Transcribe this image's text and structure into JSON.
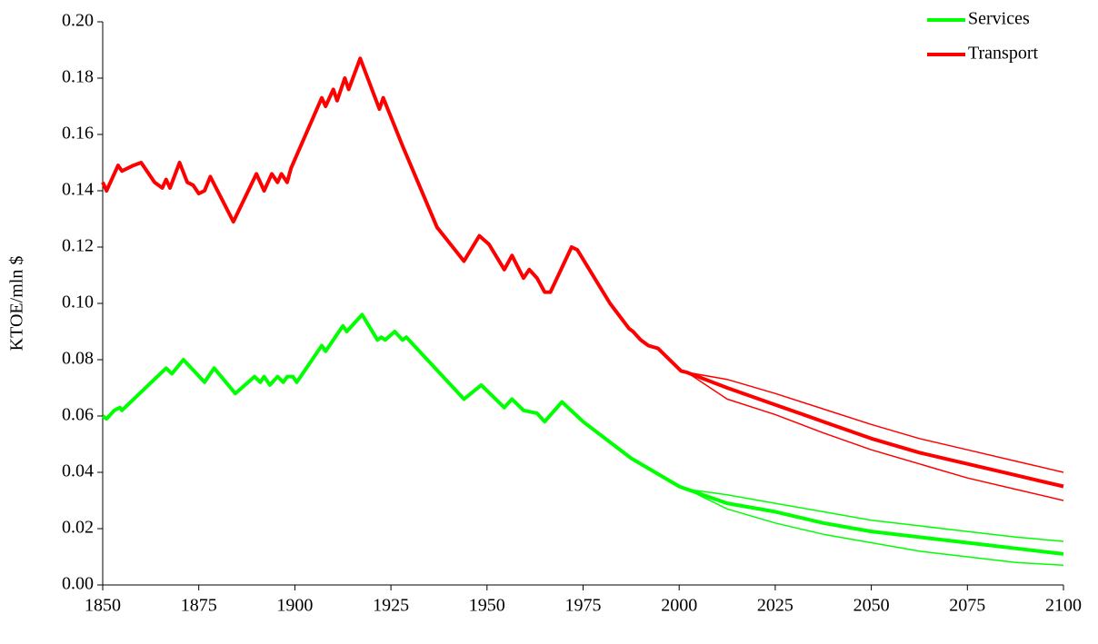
{
  "chart_data": {
    "type": "line",
    "ylabel": "KTOE/mln $",
    "xlim": [
      1850,
      2100
    ],
    "xticks": [
      1850,
      1875,
      1900,
      1925,
      1950,
      1975,
      2000,
      2025,
      2050,
      2075,
      2100
    ],
    "ylim": [
      0,
      0.2
    ],
    "yticks": [
      {
        "value": 0,
        "label": "0.00"
      },
      {
        "value": 0.02,
        "label": "0.02"
      },
      {
        "value": 0.04,
        "label": "0.04"
      },
      {
        "value": 0.06,
        "label": "0.06"
      },
      {
        "value": 0.08,
        "label": "0.08"
      },
      {
        "value": 0.1,
        "label": "0.10"
      },
      {
        "value": 0.12,
        "label": "0.12"
      },
      {
        "value": 0.14,
        "label": "0.14"
      },
      {
        "value": 0.16,
        "label": "0.16"
      },
      {
        "value": 0.18,
        "label": "0.18"
      },
      {
        "value": 0.2,
        "label": "0.20"
      }
    ],
    "grid": false,
    "legend": "upper right",
    "series": [
      {
        "name": "Services",
        "color": "#00ff00",
        "x": [
          1850,
          1851,
          1853,
          1854.5,
          1855,
          1866.5,
          1868,
          1871,
          1876.5,
          1879,
          1884.5,
          1889.5,
          1891,
          1892,
          1893.5,
          1895.5,
          1897,
          1898,
          1899.5,
          1900.5,
          1907,
          1908,
          1912.5,
          1913.5,
          1917.5,
          1921.5,
          1922.5,
          1923.5,
          1926,
          1928,
          1929,
          1944,
          1948.5,
          1954.5,
          1956.5,
          1959.5,
          1963,
          1965,
          1969.5,
          1975,
          1987.5,
          2000,
          2002,
          2012.5,
          2025,
          2037.5,
          2050,
          2062.5,
          2075,
          2087.5,
          2100
        ],
        "values": [
          0.06,
          0.059,
          0.062,
          0.063,
          0.062,
          0.077,
          0.075,
          0.08,
          0.072,
          0.077,
          0.068,
          0.074,
          0.072,
          0.074,
          0.071,
          0.074,
          0.072,
          0.074,
          0.074,
          0.072,
          0.085,
          0.083,
          0.092,
          0.09,
          0.096,
          0.087,
          0.088,
          0.087,
          0.09,
          0.087,
          0.088,
          0.066,
          0.071,
          0.063,
          0.066,
          0.062,
          0.061,
          0.058,
          0.065,
          0.058,
          0.045,
          0.035,
          0.034,
          0.029,
          0.026,
          0.022,
          0.019,
          0.017,
          0.015,
          0.013,
          0.011
        ]
      },
      {
        "name": "Transport",
        "color": "#ff0000",
        "x": [
          1850,
          1851,
          1854,
          1855,
          1858,
          1860,
          1863.5,
          1865.5,
          1866.5,
          1867.5,
          1870,
          1872,
          1873.5,
          1875,
          1876.5,
          1878,
          1884,
          1890,
          1892,
          1894,
          1895.5,
          1896.5,
          1898,
          1899,
          1907,
          1908,
          1910,
          1911,
          1913,
          1914,
          1917,
          1922,
          1923,
          1928,
          1937,
          1944,
          1948,
          1950.5,
          1954.5,
          1956.5,
          1959.5,
          1961,
          1963,
          1965,
          1966.5,
          1972,
          1973.5,
          1982,
          1987,
          1988,
          1990,
          1992,
          1994.5,
          2000.5,
          2002,
          2012.5,
          2025,
          2037.5,
          2050,
          2062.5,
          2075,
          2087.5,
          2100
        ],
        "values": [
          0.143,
          0.14,
          0.149,
          0.147,
          0.149,
          0.15,
          0.143,
          0.141,
          0.144,
          0.141,
          0.15,
          0.143,
          0.142,
          0.139,
          0.14,
          0.145,
          0.129,
          0.146,
          0.14,
          0.146,
          0.143,
          0.146,
          0.143,
          0.148,
          0.173,
          0.17,
          0.176,
          0.172,
          0.18,
          0.176,
          0.187,
          0.169,
          0.173,
          0.156,
          0.127,
          0.115,
          0.124,
          0.121,
          0.112,
          0.117,
          0.109,
          0.112,
          0.109,
          0.104,
          0.104,
          0.12,
          0.119,
          0.1,
          0.091,
          0.09,
          0.087,
          0.085,
          0.084,
          0.076,
          0.0755,
          0.07,
          0.064,
          0.058,
          0.052,
          0.047,
          0.043,
          0.039,
          0.035
        ]
      },
      {
        "color": "#00ff00",
        "x": [
          2002,
          2012.5,
          2025,
          2037.5,
          2050,
          2062.5,
          2075,
          2087.5,
          2100
        ],
        "values": [
          0.034,
          0.032,
          0.029,
          0.026,
          0.023,
          0.021,
          0.019,
          0.017,
          0.0155
        ]
      },
      {
        "color": "#00ff00",
        "x": [
          2002,
          2012.5,
          2025,
          2037.5,
          2050,
          2062.5,
          2075,
          2087.5,
          2100
        ],
        "values": [
          0.034,
          0.027,
          0.022,
          0.018,
          0.015,
          0.012,
          0.01,
          0.008,
          0.007
        ]
      },
      {
        "color": "#ff0000",
        "x": [
          2002,
          2012.5,
          2025,
          2037.5,
          2050,
          2062.5,
          2075,
          2087.5,
          2100
        ],
        "values": [
          0.0755,
          0.073,
          0.068,
          0.0625,
          0.057,
          0.052,
          0.048,
          0.044,
          0.04
        ]
      },
      {
        "color": "#ff0000",
        "x": [
          2002,
          2012.5,
          2025,
          2037.5,
          2050,
          2062.5,
          2075,
          2087.5,
          2100
        ],
        "values": [
          0.0755,
          0.066,
          0.0605,
          0.054,
          0.048,
          0.043,
          0.038,
          0.034,
          0.03
        ]
      }
    ]
  }
}
